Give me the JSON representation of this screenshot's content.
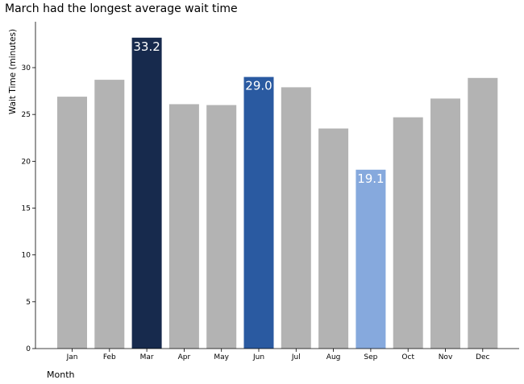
{
  "chart_data": {
    "type": "bar",
    "title": "March had the longest average wait time",
    "xlabel": "Month",
    "ylabel": "Wait Time (minutes)",
    "categories": [
      "Jan",
      "Feb",
      "Mar",
      "Apr",
      "May",
      "Jun",
      "Jul",
      "Aug",
      "Sep",
      "Oct",
      "Nov",
      "Dec"
    ],
    "values": [
      26.9,
      28.7,
      33.2,
      26.1,
      26.0,
      29.0,
      27.9,
      23.5,
      19.1,
      24.7,
      26.7,
      28.9
    ],
    "colors": [
      "#b3b3b3",
      "#b3b3b3",
      "#172a4d",
      "#b3b3b3",
      "#b3b3b3",
      "#2a5aa1",
      "#b3b3b3",
      "#b3b3b3",
      "#86a9dd",
      "#b3b3b3",
      "#b3b3b3",
      "#b3b3b3"
    ],
    "data_labels": [
      {
        "category": "Mar",
        "text": "33.2"
      },
      {
        "category": "Jun",
        "text": "29.0"
      },
      {
        "category": "Sep",
        "text": "19.1"
      }
    ],
    "yticks": [
      0,
      5,
      10,
      15,
      20,
      25,
      30
    ],
    "ylim": [
      0,
      34.9
    ],
    "grid": false,
    "legend": "none"
  }
}
